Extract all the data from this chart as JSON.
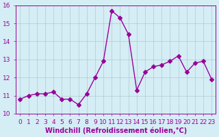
{
  "x": [
    0,
    1,
    2,
    3,
    4,
    5,
    6,
    7,
    8,
    9,
    10,
    11,
    12,
    13,
    14,
    15,
    16,
    17,
    18,
    19,
    20,
    21,
    22,
    23
  ],
  "y": [
    10.8,
    11.0,
    11.1,
    11.1,
    11.2,
    10.8,
    10.8,
    10.5,
    11.1,
    12.0,
    12.9,
    15.7,
    15.3,
    14.4,
    11.3,
    12.3,
    12.6,
    12.7,
    12.9,
    13.2,
    12.3,
    12.8,
    12.9,
    11.9
  ],
  "line_color": "#990099",
  "marker": "D",
  "markersize": 3,
  "bg_color": "#d5edf5",
  "grid_color": "#b0c8d0",
  "xlabel": "Windchill (Refroidissement éolien,°C)",
  "ylabel": "",
  "ylim": [
    10,
    16
  ],
  "xlim": [
    -0.5,
    23.5
  ],
  "yticks": [
    10,
    11,
    12,
    13,
    14,
    15,
    16
  ],
  "xticks": [
    0,
    1,
    2,
    3,
    4,
    5,
    6,
    7,
    8,
    9,
    10,
    11,
    12,
    13,
    14,
    15,
    16,
    17,
    18,
    19,
    20,
    21,
    22,
    23
  ],
  "tick_label_color": "#990099",
  "axis_color": "#990099",
  "label_fontsize": 7,
  "tick_fontsize": 6.5
}
